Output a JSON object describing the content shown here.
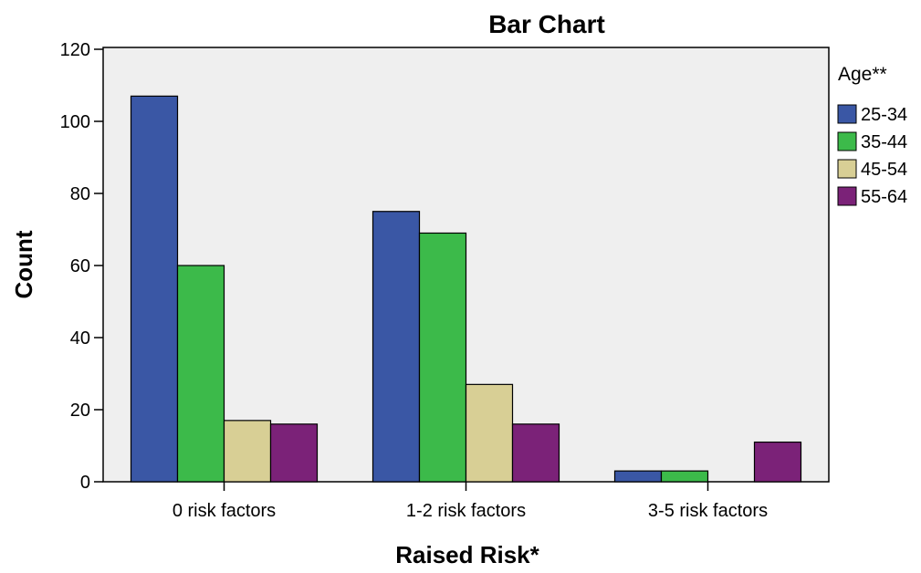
{
  "chart_data": {
    "type": "bar",
    "title": "Bar Chart",
    "xlabel": "Raised Risk*",
    "ylabel": "Count",
    "ylim": [
      0,
      120
    ],
    "yticks": [
      0,
      20,
      40,
      60,
      80,
      100,
      120
    ],
    "categories": [
      "0 risk factors",
      "1-2 risk factors",
      "3-5 risk factors"
    ],
    "legend_title": "Age**",
    "legend_position": "right",
    "grid": false,
    "series": [
      {
        "name": "25-34",
        "color": "#3a57a5",
        "values": [
          107,
          75,
          3
        ]
      },
      {
        "name": "35-44",
        "color": "#3cba4a",
        "values": [
          60,
          69,
          3
        ]
      },
      {
        "name": "45-54",
        "color": "#d8cf95",
        "values": [
          17,
          27,
          0
        ]
      },
      {
        "name": "55-64",
        "color": "#7b2278",
        "values": [
          16,
          16,
          11
        ]
      }
    ],
    "plot_background": "#efefef"
  }
}
